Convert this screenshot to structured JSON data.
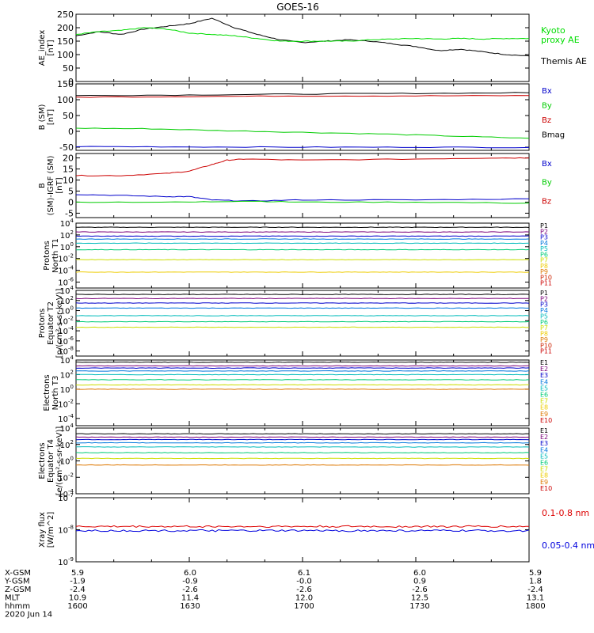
{
  "title": "GOES-16",
  "chart_data": [
    {
      "type": "line",
      "ylabel": "AE_index [nT]",
      "ylim": [
        0,
        250
      ],
      "y_ticks": [
        "0",
        "50",
        "100",
        "150",
        "200",
        "250"
      ],
      "legend": [
        {
          "text": "Kyoto proxy AE",
          "lines": [
            "Kyoto",
            "proxy AE"
          ],
          "color": "#00dd00"
        },
        {
          "text": "Themis AE",
          "lines": [
            "Themis AE"
          ],
          "color": "#000000"
        }
      ],
      "series": [
        {
          "name": "Themis AE",
          "color": "#000000",
          "x": [
            1600,
            1606,
            1612,
            1618,
            1624,
            1630,
            1636,
            1642,
            1648,
            1654,
            1700,
            1706,
            1712,
            1718,
            1724,
            1730,
            1736,
            1742,
            1748,
            1754,
            1800
          ],
          "y": [
            170,
            185,
            175,
            195,
            205,
            215,
            235,
            200,
            175,
            155,
            145,
            150,
            155,
            150,
            140,
            130,
            115,
            120,
            110,
            100,
            95
          ]
        },
        {
          "name": "Kyoto proxy AE",
          "color": "#00dd00",
          "x": [
            1600,
            1606,
            1612,
            1618,
            1624,
            1630,
            1636,
            1642,
            1648,
            1654,
            1700,
            1706,
            1712,
            1718,
            1724,
            1730,
            1736,
            1742,
            1748,
            1754,
            1800
          ],
          "y": [
            175,
            185,
            190,
            200,
            195,
            180,
            175,
            170,
            160,
            150,
            150,
            150,
            150,
            155,
            158,
            160,
            158,
            160,
            158,
            160,
            160
          ]
        }
      ]
    },
    {
      "type": "line",
      "ylabel": "B (SM) [nT]",
      "ylim": [
        -60,
        150
      ],
      "y_ticks": [
        "-50",
        "0",
        "50",
        "100",
        "150"
      ],
      "legend": [
        {
          "text": "Bx",
          "color": "#0000cc"
        },
        {
          "text": "By",
          "color": "#00cc00"
        },
        {
          "text": "Bz",
          "color": "#cc0000"
        },
        {
          "text": "Bmag",
          "color": "#000000"
        }
      ],
      "series": [
        {
          "name": "Bmag",
          "color": "#000000",
          "x": [
            1600,
            1630,
            1700,
            1730,
            1800
          ],
          "y": [
            113,
            115,
            118,
            120,
            122
          ]
        },
        {
          "name": "Bz",
          "color": "#cc0000",
          "x": [
            1600,
            1630,
            1700,
            1730,
            1800
          ],
          "y": [
            108,
            110,
            112,
            112,
            113
          ]
        },
        {
          "name": "By",
          "color": "#00cc00",
          "x": [
            1600,
            1620,
            1640,
            1700,
            1720,
            1740,
            1800
          ],
          "y": [
            10,
            8,
            2,
            -3,
            -8,
            -15,
            -22
          ]
        },
        {
          "name": "Bx",
          "color": "#0000cc",
          "x": [
            1600,
            1630,
            1700,
            1730,
            1800
          ],
          "y": [
            -48,
            -49,
            -50,
            -50,
            -51
          ]
        }
      ]
    },
    {
      "type": "line",
      "ylabel": "B (SM)-IGRF (SM) [nT]",
      "ylim": [
        -7,
        22
      ],
      "y_ticks": [
        "-5",
        "0",
        "5",
        "10",
        "15",
        "20"
      ],
      "legend": [
        {
          "text": "Bx",
          "color": "#0000cc"
        },
        {
          "text": "By",
          "color": "#00cc00"
        },
        {
          "text": "Bz",
          "color": "#cc0000"
        }
      ],
      "series": [
        {
          "name": "Bz",
          "color": "#cc0000",
          "x": [
            1600,
            1612,
            1624,
            1630,
            1636,
            1640,
            1645,
            1700,
            1730,
            1750,
            1800
          ],
          "y": [
            12,
            12,
            13,
            14,
            17,
            19,
            19.5,
            19,
            19.5,
            20,
            20
          ]
        },
        {
          "name": "Bx",
          "color": "#0000cc",
          "x": [
            1600,
            1612,
            1624,
            1630,
            1636,
            1645,
            1700,
            1730,
            1800
          ],
          "y": [
            3.5,
            3,
            2.5,
            2.5,
            1,
            0.5,
            1,
            1,
            1.5
          ]
        },
        {
          "name": "By",
          "color": "#00cc00",
          "x": [
            1600,
            1630,
            1645,
            1700,
            1730,
            1800
          ],
          "y": [
            0,
            0,
            0.5,
            0,
            0,
            -0.5
          ]
        }
      ]
    },
    {
      "type": "line",
      "log": true,
      "ylabel": "Protons North T1",
      "ylim_exp": [
        -7,
        4
      ],
      "y_ticks": [
        {
          "base": "10",
          "exp": "4"
        },
        {
          "base": "10",
          "exp": "2"
        },
        {
          "base": "10",
          "exp": "0"
        },
        {
          "base": "10",
          "exp": "-2"
        },
        {
          "base": "10",
          "exp": "-4"
        },
        {
          "base": "10",
          "exp": "-6"
        }
      ],
      "legend": [
        {
          "text": "P1",
          "color": "#000000"
        },
        {
          "text": "P2",
          "color": "#7a007a"
        },
        {
          "text": "P3",
          "color": "#0000cc"
        },
        {
          "text": "P4",
          "color": "#0077dd"
        },
        {
          "text": "P5",
          "color": "#00bbbb"
        },
        {
          "text": "P6",
          "color": "#00cc77"
        },
        {
          "text": "P7",
          "color": "#ccdd00"
        },
        {
          "text": "P8",
          "color": "#eecc00"
        },
        {
          "text": "P9",
          "color": "#dd7700"
        },
        {
          "text": "P10",
          "color": "#cc2200"
        },
        {
          "text": "P11",
          "color": "#cc0000"
        }
      ],
      "series": [
        {
          "name": "P1",
          "color": "#000000",
          "level_exp": 3.3
        },
        {
          "name": "P2",
          "color": "#7a007a",
          "level_exp": 2.5
        },
        {
          "name": "P3",
          "color": "#0000cc",
          "level_exp": 1.8
        },
        {
          "name": "P4",
          "color": "#0077dd",
          "level_exp": 1.3
        },
        {
          "name": "P5",
          "color": "#00bbbb",
          "level_exp": 0.6
        },
        {
          "name": "P6",
          "color": "#00cc77",
          "level_exp": -0.5
        },
        {
          "name": "P7",
          "color": "#ccdd00",
          "level_exp": -2.2
        },
        {
          "name": "P8",
          "color": "#eecc00",
          "level_exp": -4.3
        }
      ]
    },
    {
      "type": "line",
      "log": true,
      "ylabel": "Protons Equator T2 [p/(cm²-s-sr-keV)]",
      "ylim_exp": [
        -9,
        4
      ],
      "y_ticks": [
        {
          "base": "10",
          "exp": "4"
        },
        {
          "base": "10",
          "exp": "2"
        },
        {
          "base": "10",
          "exp": "0"
        },
        {
          "base": "10",
          "exp": "-2"
        },
        {
          "base": "10",
          "exp": "-4"
        },
        {
          "base": "10",
          "exp": "-6"
        },
        {
          "base": "10",
          "exp": "-8"
        }
      ],
      "legend": [
        {
          "text": "P1",
          "color": "#000000"
        },
        {
          "text": "P2",
          "color": "#7a007a"
        },
        {
          "text": "P3",
          "color": "#0000cc"
        },
        {
          "text": "P4",
          "color": "#0077dd"
        },
        {
          "text": "P5",
          "color": "#00bbbb"
        },
        {
          "text": "P6",
          "color": "#00cc77"
        },
        {
          "text": "P7",
          "color": "#ccdd00"
        },
        {
          "text": "P8",
          "color": "#eecc00"
        },
        {
          "text": "P9",
          "color": "#dd7700"
        },
        {
          "text": "P10",
          "color": "#cc2200"
        },
        {
          "text": "P11",
          "color": "#cc0000"
        }
      ],
      "series": [
        {
          "name": "P1",
          "color": "#000000",
          "level_exp": 3.2
        },
        {
          "name": "P2",
          "color": "#7a007a",
          "level_exp": 2.4
        },
        {
          "name": "P3",
          "color": "#0000cc",
          "level_exp": 1.5
        },
        {
          "name": "P4",
          "color": "#0077dd",
          "level_exp": 0.5
        },
        {
          "name": "P5",
          "color": "#00bbbb",
          "level_exp": -1.0
        },
        {
          "name": "P6",
          "color": "#00cc77",
          "level_exp": -2.2
        },
        {
          "name": "P7",
          "color": "#ccdd00",
          "level_exp": -3.3
        }
      ]
    },
    {
      "type": "line",
      "log": true,
      "ylabel": "Electrons North T3",
      "ylim_exp": [
        -5,
        4
      ],
      "y_ticks": [
        {
          "base": "10",
          "exp": "4"
        },
        {
          "base": "10",
          "exp": "2"
        },
        {
          "base": "10",
          "exp": "0"
        },
        {
          "base": "10",
          "exp": "-2"
        },
        {
          "base": "10",
          "exp": "-4"
        }
      ],
      "legend": [
        {
          "text": "E1",
          "color": "#000000"
        },
        {
          "text": "E2",
          "color": "#7a007a"
        },
        {
          "text": "E3",
          "color": "#0000cc"
        },
        {
          "text": "E4",
          "color": "#0077dd"
        },
        {
          "text": "E5",
          "color": "#00bbbb"
        },
        {
          "text": "E6",
          "color": "#00cc77"
        },
        {
          "text": "E7",
          "color": "#ccdd00"
        },
        {
          "text": "E8",
          "color": "#eecc00"
        },
        {
          "text": "E9",
          "color": "#dd7700"
        },
        {
          "text": "E10",
          "color": "#cc0000"
        }
      ],
      "series": [
        {
          "name": "E1",
          "color": "#000000",
          "level_exp": 3.7
        },
        {
          "name": "E2",
          "color": "#7a007a",
          "level_exp": 3.2
        },
        {
          "name": "E3",
          "color": "#0000cc",
          "level_exp": 2.9
        },
        {
          "name": "E4",
          "color": "#0077dd",
          "level_exp": 2.5
        },
        {
          "name": "E5",
          "color": "#00bbbb",
          "level_exp": 2.0
        },
        {
          "name": "E6",
          "color": "#00cc77",
          "level_exp": 1.3
        },
        {
          "name": "E7",
          "color": "#ccdd00",
          "level_exp": 0.6
        },
        {
          "name": "E8",
          "color": "#dd7700",
          "level_exp": 0.0
        }
      ]
    },
    {
      "type": "line",
      "log": true,
      "ylabel": "Electrons Equator T4 [e/(cm²-s-sr-keV)]",
      "ylim_exp": [
        -4,
        4
      ],
      "y_ticks": [
        {
          "base": "10",
          "exp": "4"
        },
        {
          "base": "10",
          "exp": "2"
        },
        {
          "base": "10",
          "exp": "0"
        },
        {
          "base": "10",
          "exp": "-2"
        },
        {
          "base": "10",
          "exp": "-4"
        }
      ],
      "legend": [
        {
          "text": "E1",
          "color": "#000000"
        },
        {
          "text": "E2",
          "color": "#7a007a"
        },
        {
          "text": "E3",
          "color": "#0000cc"
        },
        {
          "text": "E4",
          "color": "#0077dd"
        },
        {
          "text": "E5",
          "color": "#00bbbb"
        },
        {
          "text": "E6",
          "color": "#00cc77"
        },
        {
          "text": "E7",
          "color": "#ccdd00"
        },
        {
          "text": "E8",
          "color": "#eecc00"
        },
        {
          "text": "E9",
          "color": "#dd7700"
        },
        {
          "text": "E10",
          "color": "#cc0000"
        }
      ],
      "series": [
        {
          "name": "E1",
          "color": "#000000",
          "level_exp": 3.3
        },
        {
          "name": "E2",
          "color": "#7a007a",
          "level_exp": 2.9
        },
        {
          "name": "E3",
          "color": "#0000cc",
          "level_exp": 2.6
        },
        {
          "name": "E4",
          "color": "#0077dd",
          "level_exp": 2.2
        },
        {
          "name": "E5",
          "color": "#00bbbb",
          "level_exp": 1.7
        },
        {
          "name": "E6",
          "color": "#00cc77",
          "level_exp": 1.0
        },
        {
          "name": "E7",
          "color": "#ccdd00",
          "level_exp": 0.3
        },
        {
          "name": "E8",
          "color": "#dd7700",
          "level_exp": -0.5
        }
      ]
    },
    {
      "type": "line",
      "log": true,
      "ylabel": "Xray flux [W/m^2]",
      "ylim_exp": [
        -9,
        -7
      ],
      "y_ticks": [
        {
          "base": "10",
          "exp": "-7"
        },
        {
          "base": "10",
          "exp": "-8"
        },
        {
          "base": "10",
          "exp": "-9"
        }
      ],
      "legend": [
        {
          "text": "0.1-0.8 nm",
          "color": "#dd0000"
        },
        {
          "text": "0.05-0.4 nm",
          "color": "#0000dd"
        }
      ],
      "series": [
        {
          "name": "0.1-0.8 nm",
          "color": "#dd0000",
          "level_exp": -7.9
        },
        {
          "name": "0.05-0.4 nm",
          "color": "#0000dd",
          "level_exp": -8.03
        }
      ]
    }
  ],
  "x_axis": {
    "rows": [
      {
        "label": "X-GSM",
        "values": [
          "5.9",
          "6.0",
          "6.1",
          "6.0",
          "5.9"
        ]
      },
      {
        "label": "Y-GSM",
        "values": [
          "-1.9",
          "-0.9",
          "-0.0",
          "0.9",
          "1.8"
        ]
      },
      {
        "label": "Z-GSM",
        "values": [
          "-2.4",
          "-2.6",
          "-2.6",
          "-2.6",
          "-2.4"
        ]
      },
      {
        "label": "MLT",
        "values": [
          "10.9",
          "11.4",
          "12.0",
          "12.5",
          "13.1"
        ]
      },
      {
        "label": "hhmm",
        "values": [
          "1600",
          "1630",
          "1700",
          "1730",
          "1800"
        ]
      }
    ],
    "date": "2020 Jun 14"
  }
}
